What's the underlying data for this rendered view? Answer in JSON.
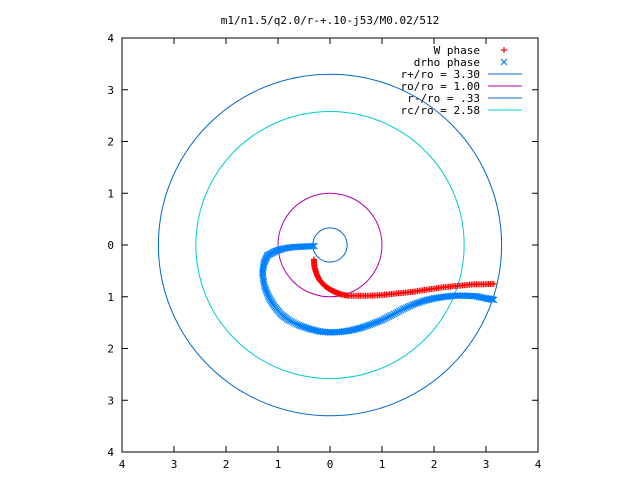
{
  "chart_data": {
    "type": "scatter",
    "title": "m1/n1.5/q2.0/r-+.10-j53/M0.02/512",
    "xlabel": "",
    "ylabel": "",
    "xlim": [
      -4,
      4
    ],
    "ylim": [
      -4,
      4
    ],
    "aspect": "equal",
    "grid": false,
    "legend_position": "top-right",
    "x_ticks": [
      -4,
      -3,
      -2,
      -1,
      0,
      1,
      2,
      3,
      4
    ],
    "x_tick_labels": [
      "4",
      "3",
      "2",
      "1",
      "0",
      "1",
      "2",
      "3",
      "4"
    ],
    "y_ticks": [
      4,
      3,
      2,
      1,
      0,
      -1,
      -2,
      -3,
      -4
    ],
    "y_tick_labels": [
      "4",
      "3",
      "2",
      "1",
      "0",
      "1",
      "2",
      "3",
      "4"
    ],
    "series": [
      {
        "name": "W phase",
        "kind": "points",
        "marker": "+",
        "color": "#ff0000",
        "x": [
          -0.31,
          -0.3,
          -0.26,
          -0.2,
          -0.1,
          0.0,
          0.1,
          0.2,
          0.35,
          0.55,
          0.75,
          0.95,
          1.15,
          1.35,
          1.55,
          1.75,
          1.95,
          2.15,
          2.35,
          2.55,
          2.75,
          2.95,
          3.15
        ],
        "y": [
          -0.28,
          -0.42,
          -0.56,
          -0.68,
          -0.79,
          -0.86,
          -0.91,
          -0.95,
          -0.98,
          -0.98,
          -0.98,
          -0.97,
          -0.95,
          -0.93,
          -0.91,
          -0.88,
          -0.85,
          -0.82,
          -0.8,
          -0.78,
          -0.76,
          -0.76,
          -0.75
        ]
      },
      {
        "name": "drho phase",
        "kind": "points",
        "marker": "x",
        "color": "#0080ff",
        "x": [
          -0.3,
          -0.5,
          -0.7,
          -0.9,
          -1.05,
          -1.2,
          -1.27,
          -1.3,
          -1.26,
          -1.18,
          -1.08,
          -0.95,
          -0.8,
          -0.6,
          -0.4,
          -0.2,
          0.0,
          0.2,
          0.4,
          0.6,
          0.8,
          1.0,
          1.2,
          1.4,
          1.6,
          1.8,
          2.0,
          2.2,
          2.4,
          2.6,
          2.8,
          3.0,
          3.15
        ],
        "y": [
          -0.02,
          -0.03,
          -0.04,
          -0.07,
          -0.12,
          -0.2,
          -0.35,
          -0.55,
          -0.8,
          -1.0,
          -1.17,
          -1.33,
          -1.45,
          -1.55,
          -1.62,
          -1.67,
          -1.69,
          -1.68,
          -1.65,
          -1.6,
          -1.53,
          -1.45,
          -1.35,
          -1.24,
          -1.15,
          -1.08,
          -1.03,
          -1.0,
          -0.98,
          -0.98,
          -0.99,
          -1.03,
          -1.06
        ]
      },
      {
        "name": "r+/ro = 3.30",
        "kind": "circle",
        "radius": 3.3,
        "color": "#0066cc"
      },
      {
        "name": "ro/ro = 1.00",
        "kind": "circle",
        "radius": 1.0,
        "color": "#b000b0"
      },
      {
        "name": "r-/ro = .33",
        "kind": "circle",
        "radius": 0.33,
        "color": "#0066cc"
      },
      {
        "name": "rc/ro = 2.58",
        "kind": "circle",
        "radius": 2.58,
        "color": "#00cccc"
      }
    ]
  }
}
